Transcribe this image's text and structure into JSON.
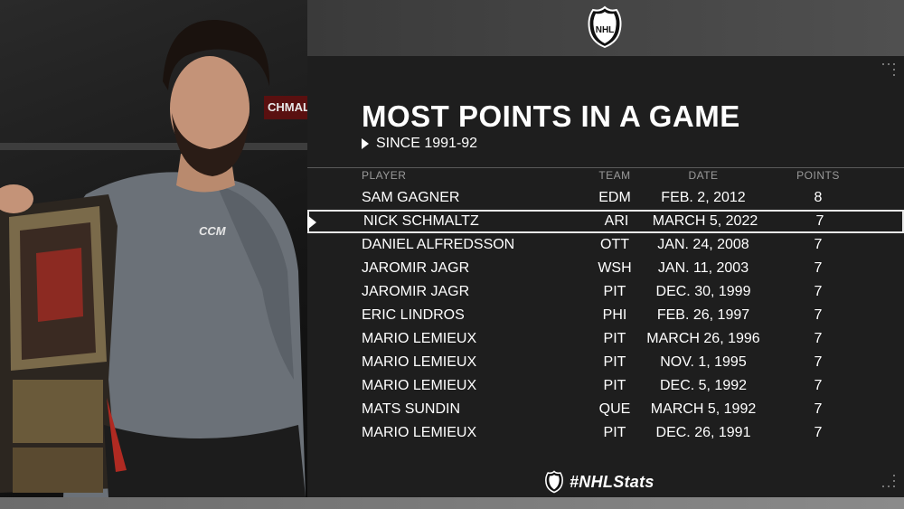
{
  "header": {
    "logo": "NHL"
  },
  "photo": {
    "sign_text": "CHMAL",
    "shirt_logo": "CCM"
  },
  "title": "MOST POINTS IN A GAME",
  "subtitle": "SINCE 1991-92",
  "columns": {
    "player": "PLAYER",
    "team": "TEAM",
    "date": "DATE",
    "points": "POINTS"
  },
  "rows": [
    {
      "player": "SAM GAGNER",
      "team": "EDM",
      "date": "FEB. 2, 2012",
      "points": "8"
    },
    {
      "player": "NICK SCHMALTZ",
      "team": "ARI",
      "date": "MARCH 5, 2022",
      "points": "7"
    },
    {
      "player": "DANIEL ALFREDSSON",
      "team": "OTT",
      "date": "JAN. 24, 2008",
      "points": "7"
    },
    {
      "player": "JAROMIR JAGR",
      "team": "WSH",
      "date": "JAN. 11, 2003",
      "points": "7"
    },
    {
      "player": "JAROMIR JAGR",
      "team": "PIT",
      "date": "DEC. 30, 1999",
      "points": "7"
    },
    {
      "player": "ERIC LINDROS",
      "team": "PHI",
      "date": "FEB. 26, 1997",
      "points": "7"
    },
    {
      "player": "MARIO LEMIEUX",
      "team": "PIT",
      "date": "MARCH 26, 1996",
      "points": "7"
    },
    {
      "player": "MARIO LEMIEUX",
      "team": "PIT",
      "date": "NOV. 1, 1995",
      "points": "7"
    },
    {
      "player": "MARIO LEMIEUX",
      "team": "PIT",
      "date": "DEC. 5, 1992",
      "points": "7"
    },
    {
      "player": "MATS SUNDIN",
      "team": "QUE",
      "date": "MARCH 5, 1992",
      "points": "7"
    },
    {
      "player": "MARIO LEMIEUX",
      "team": "PIT",
      "date": "DEC. 26, 1991",
      "points": "7"
    }
  ],
  "footer": {
    "hashtag": "#NHLStats"
  },
  "colors": {
    "panel": "#1e1e1e",
    "highlight_border": "#e8e8e8",
    "header_text": "#9a9a9a"
  }
}
